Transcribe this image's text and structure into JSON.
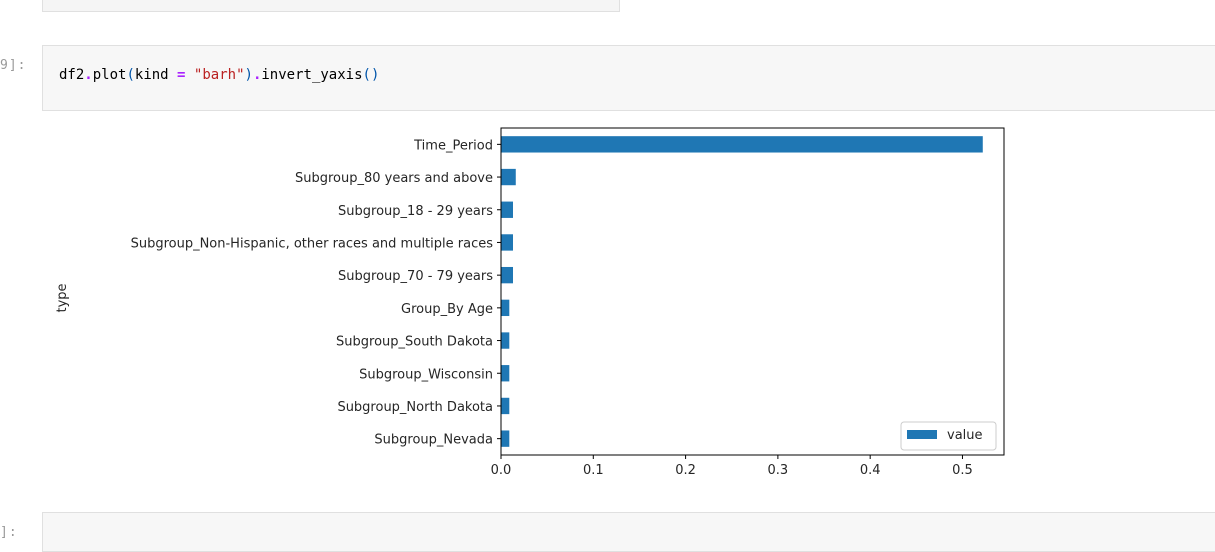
{
  "prev_cell": {},
  "cell1": {
    "prompt": "9]:",
    "code": {
      "var": "df2",
      "method": "plot",
      "arg_name": "kind",
      "arg_value": "\"barh\"",
      "chain": "invert_yaxis"
    }
  },
  "cell2": {
    "prompt": " ]:"
  },
  "chart_data": {
    "type": "bar",
    "orientation": "horizontal",
    "categories": [
      "Time_Period",
      "Subgroup_80 years and above",
      "Subgroup_18 - 29 years",
      "Subgroup_Non-Hispanic, other races and multiple races",
      "Subgroup_70 - 79 years",
      "Group_By Age",
      "Subgroup_South Dakota",
      "Subgroup_Wisconsin",
      "Subgroup_North Dakota",
      "Subgroup_Nevada"
    ],
    "series": [
      {
        "name": "value",
        "values": [
          0.522,
          0.016,
          0.013,
          0.013,
          0.013,
          0.009,
          0.009,
          0.009,
          0.009,
          0.009
        ]
      }
    ],
    "xlim": [
      0,
      0.545
    ],
    "xticks": [
      "0.0",
      "0.1",
      "0.2",
      "0.3",
      "0.4",
      "0.5"
    ],
    "xtick_values": [
      0,
      0.1,
      0.2,
      0.3,
      0.4,
      0.5
    ],
    "ylabel": "type",
    "legend": "lower-right",
    "grid": false,
    "bar_color": "#1f77b4"
  }
}
